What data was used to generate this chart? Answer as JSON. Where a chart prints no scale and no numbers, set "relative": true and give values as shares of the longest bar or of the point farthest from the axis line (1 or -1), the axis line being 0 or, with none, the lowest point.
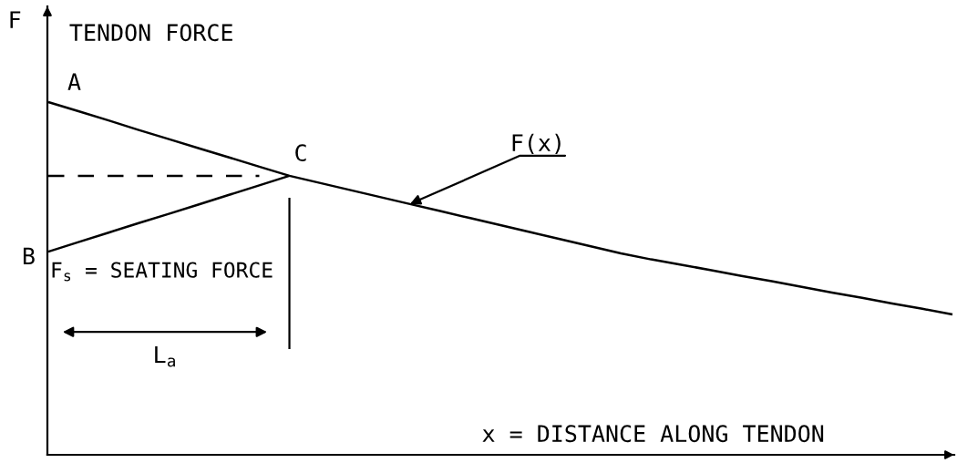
{
  "chart_data": {
    "type": "line",
    "relative": true,
    "line_style": "solid",
    "xlabel": "x = DISTANCE ALONG TENDON",
    "ylabel": "F",
    "categories": [
      null,
      null,
      null,
      null,
      null,
      null,
      null,
      null,
      null,
      null,
      null,
      null,
      null,
      null,
      null,
      null,
      null,
      null,
      null,
      null,
      null,
      null,
      null,
      null,
      null,
      null,
      null,
      null,
      null,
      null,
      null
    ],
    "series": [
      {
        "color": "#000000",
        "values": [
          1.0,
          0.974,
          0.948,
          0.921,
          0.895,
          0.869,
          0.843,
          0.817,
          0.791,
          0.771,
          0.751,
          0.731,
          0.711,
          0.691,
          0.671,
          0.651,
          0.631,
          0.611,
          0.591,
          0.571,
          0.554,
          0.539,
          0.523,
          0.507,
          0.492,
          0.476,
          0.46,
          0.445,
          0.429,
          0.414,
          0.398
        ]
      },
      {
        "color": "#000000",
        "values": [
          0.576,
          0.603,
          0.63,
          0.657,
          0.683,
          0.71,
          0.737,
          0.764,
          0.791,
          null,
          null,
          null,
          null,
          null,
          null,
          null,
          null,
          null,
          null,
          null,
          null,
          null,
          null,
          null,
          null,
          null,
          null,
          null,
          null,
          null,
          null
        ]
      },
      {
        "color": "#000000",
        "line_style": "dashed",
        "values": [
          0.791,
          0.791,
          0.791,
          0.791,
          0.791,
          0.791,
          0.791,
          0.791,
          null,
          null,
          null,
          null,
          null,
          null,
          null,
          null,
          null,
          null,
          null,
          null,
          null,
          null,
          null,
          null,
          null,
          null,
          null,
          null,
          null,
          null,
          null
        ]
      }
    ],
    "annotations": [
      "TENDON FORCE",
      "A",
      "B",
      "C",
      "F(x)",
      "F$_{s}$ = SEATING FORCE",
      "L$_{a}$"
    ]
  }
}
